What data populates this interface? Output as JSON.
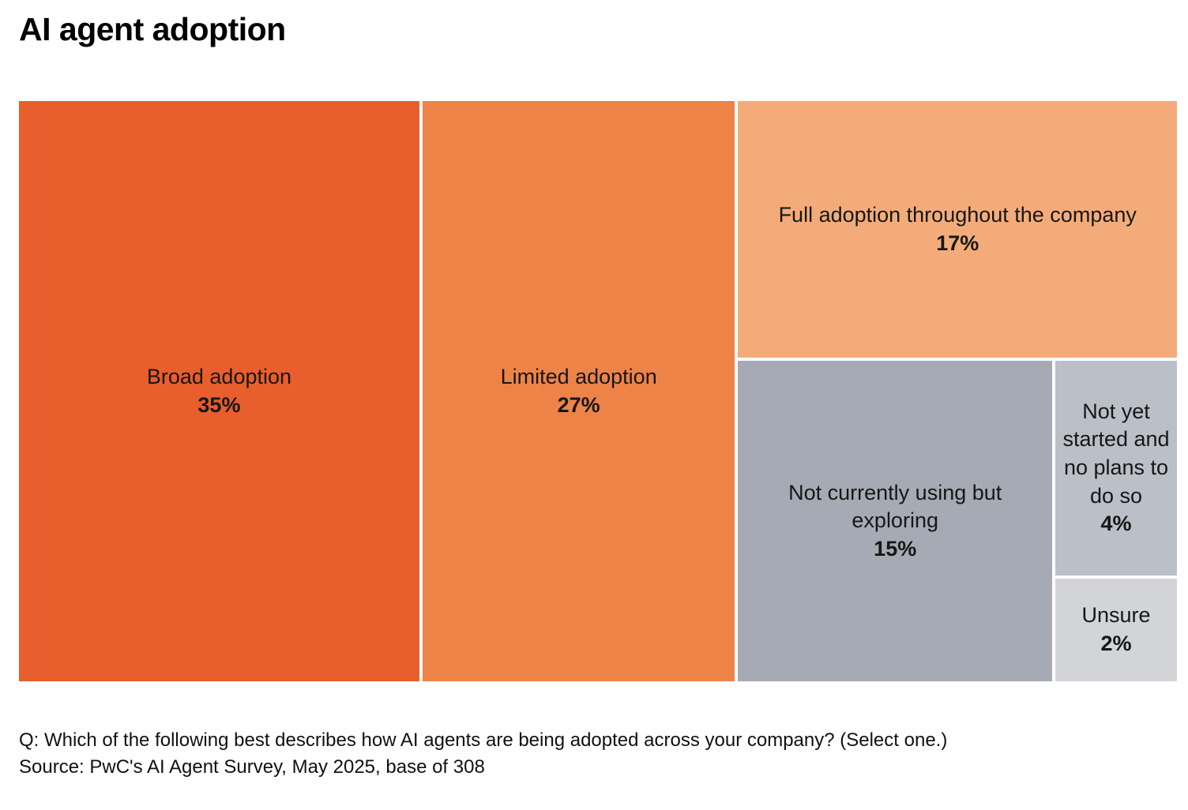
{
  "title": "AI agent adoption",
  "chart_data": {
    "type": "treemap",
    "title": "AI agent adoption",
    "unit": "%",
    "total": 100,
    "legend_position": "none",
    "segments": [
      {
        "label": "Broad adoption",
        "value": 35,
        "display": "35%",
        "color": "#E85E2C"
      },
      {
        "label": "Limited adoption",
        "value": 27,
        "display": "27%",
        "color": "#EE8348"
      },
      {
        "label": "Full adoption throughout the company",
        "value": 17,
        "display": "17%",
        "color": "#F3AC79"
      },
      {
        "label": "Not currently using but exploring",
        "value": 15,
        "display": "15%",
        "color": "#A6AAB4"
      },
      {
        "label": "Not yet started and no plans to do so",
        "value": 4,
        "display": "4%",
        "color": "#BBBFC7"
      },
      {
        "label": "Unsure",
        "value": 2,
        "display": "2%",
        "color": "#D2D4D8"
      }
    ]
  },
  "footer": {
    "question": "Q: Which of the following best describes how AI agents are being adopted across your company? (Select one.)",
    "source": "Source: PwC's AI Agent Survey, May 2025, base of 308"
  }
}
